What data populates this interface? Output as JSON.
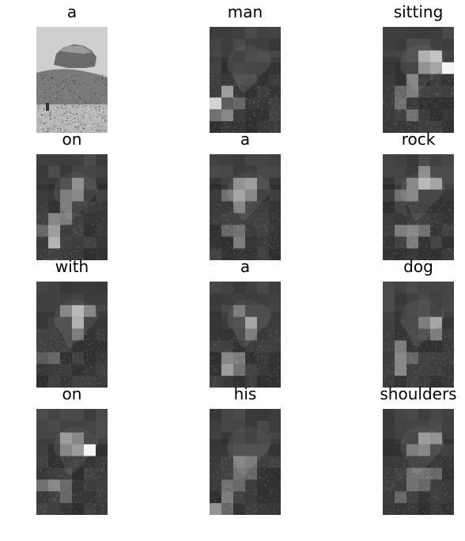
{
  "figure": {
    "panels": [
      {
        "word": "a",
        "kind": "original"
      },
      {
        "word": "man",
        "kind": "attention",
        "hot": [
          [
            0,
            6,
            0.8
          ],
          [
            1,
            5,
            0.55
          ],
          [
            1,
            7,
            0.45
          ],
          [
            0,
            7,
            0.35
          ],
          [
            2,
            6,
            0.3
          ],
          [
            1,
            6,
            0.25
          ]
        ]
      },
      {
        "word": "sitting",
        "kind": "attention",
        "hot": [
          [
            5,
            3,
            0.95
          ],
          [
            4,
            2,
            0.7
          ],
          [
            3,
            2,
            0.6
          ],
          [
            4,
            3,
            0.55
          ],
          [
            3,
            3,
            0.45
          ],
          [
            2,
            4,
            0.4
          ],
          [
            2,
            5,
            0.4
          ],
          [
            1,
            6,
            0.35
          ],
          [
            2,
            7,
            0.35
          ],
          [
            1,
            5,
            0.3
          ]
        ]
      },
      {
        "word": "on",
        "kind": "attention",
        "hot": [
          [
            1,
            6,
            0.55
          ],
          [
            1,
            7,
            0.65
          ],
          [
            1,
            5,
            0.45
          ],
          [
            2,
            5,
            0.4
          ],
          [
            3,
            2,
            0.45
          ],
          [
            3,
            3,
            0.4
          ],
          [
            2,
            3,
            0.35
          ],
          [
            2,
            4,
            0.35
          ],
          [
            0,
            6,
            0.3
          ]
        ]
      },
      {
        "word": "a",
        "kind": "attention",
        "hot": [
          [
            3,
            2,
            0.5
          ],
          [
            2,
            3,
            0.55
          ],
          [
            3,
            3,
            0.4
          ],
          [
            2,
            2,
            0.45
          ],
          [
            2,
            4,
            0.4
          ],
          [
            1,
            3,
            0.35
          ],
          [
            2,
            6,
            0.35
          ],
          [
            1,
            6,
            0.3
          ],
          [
            2,
            7,
            0.4
          ]
        ]
      },
      {
        "word": "rock",
        "kind": "attention",
        "hot": [
          [
            3,
            2,
            0.65
          ],
          [
            4,
            2,
            0.55
          ],
          [
            3,
            1,
            0.45
          ],
          [
            2,
            2,
            0.4
          ],
          [
            2,
            3,
            0.4
          ],
          [
            1,
            3,
            0.35
          ],
          [
            1,
            6,
            0.4
          ],
          [
            2,
            6,
            0.45
          ],
          [
            3,
            6,
            0.35
          ],
          [
            2,
            7,
            0.4
          ]
        ]
      },
      {
        "word": "with",
        "kind": "attention",
        "hot": [
          [
            3,
            2,
            0.65
          ],
          [
            3,
            3,
            0.6
          ],
          [
            4,
            2,
            0.4
          ],
          [
            2,
            2,
            0.4
          ],
          [
            3,
            4,
            0.35
          ],
          [
            1,
            6,
            0.3
          ],
          [
            0,
            6,
            0.25
          ]
        ]
      },
      {
        "word": "a",
        "kind": "attention",
        "hot": [
          [
            3,
            3,
            0.55
          ],
          [
            2,
            2,
            0.35
          ],
          [
            3,
            4,
            0.35
          ],
          [
            1,
            6,
            0.45
          ],
          [
            1,
            7,
            0.55
          ],
          [
            2,
            6,
            0.4
          ],
          [
            2,
            7,
            0.35
          ]
        ]
      },
      {
        "word": "dog",
        "kind": "attention",
        "hot": [
          [
            4,
            3,
            0.55
          ],
          [
            4,
            4,
            0.4
          ],
          [
            3,
            3,
            0.35
          ],
          [
            1,
            5,
            0.4
          ],
          [
            1,
            6,
            0.45
          ],
          [
            1,
            7,
            0.45
          ],
          [
            2,
            6,
            0.3
          ]
        ]
      },
      {
        "word": "on",
        "kind": "attention",
        "hot": [
          [
            4,
            3,
            0.95
          ],
          [
            3,
            3,
            0.5
          ],
          [
            2,
            2,
            0.5
          ],
          [
            2,
            3,
            0.4
          ],
          [
            3,
            2,
            0.4
          ],
          [
            1,
            6,
            0.45
          ],
          [
            0,
            6,
            0.35
          ],
          [
            2,
            7,
            0.3
          ],
          [
            2,
            6,
            0.3
          ]
        ]
      },
      {
        "word": "his",
        "kind": "attention",
        "hot": [
          [
            2,
            4,
            0.4
          ],
          [
            3,
            4,
            0.35
          ],
          [
            3,
            5,
            0.3
          ],
          [
            2,
            5,
            0.35
          ],
          [
            1,
            6,
            0.35
          ],
          [
            2,
            6,
            0.3
          ],
          [
            1,
            7,
            0.4
          ],
          [
            0,
            8,
            0.5
          ],
          [
            1,
            8,
            0.3
          ]
        ]
      },
      {
        "word": "shoulders",
        "kind": "attention",
        "hot": [
          [
            3,
            2,
            0.5
          ],
          [
            4,
            2,
            0.45
          ],
          [
            3,
            3,
            0.4
          ],
          [
            2,
            3,
            0.35
          ],
          [
            3,
            5,
            0.35
          ],
          [
            2,
            5,
            0.35
          ],
          [
            4,
            5,
            0.3
          ],
          [
            2,
            6,
            0.35
          ],
          [
            3,
            6,
            0.3
          ],
          [
            1,
            7,
            0.3
          ]
        ]
      }
    ]
  }
}
